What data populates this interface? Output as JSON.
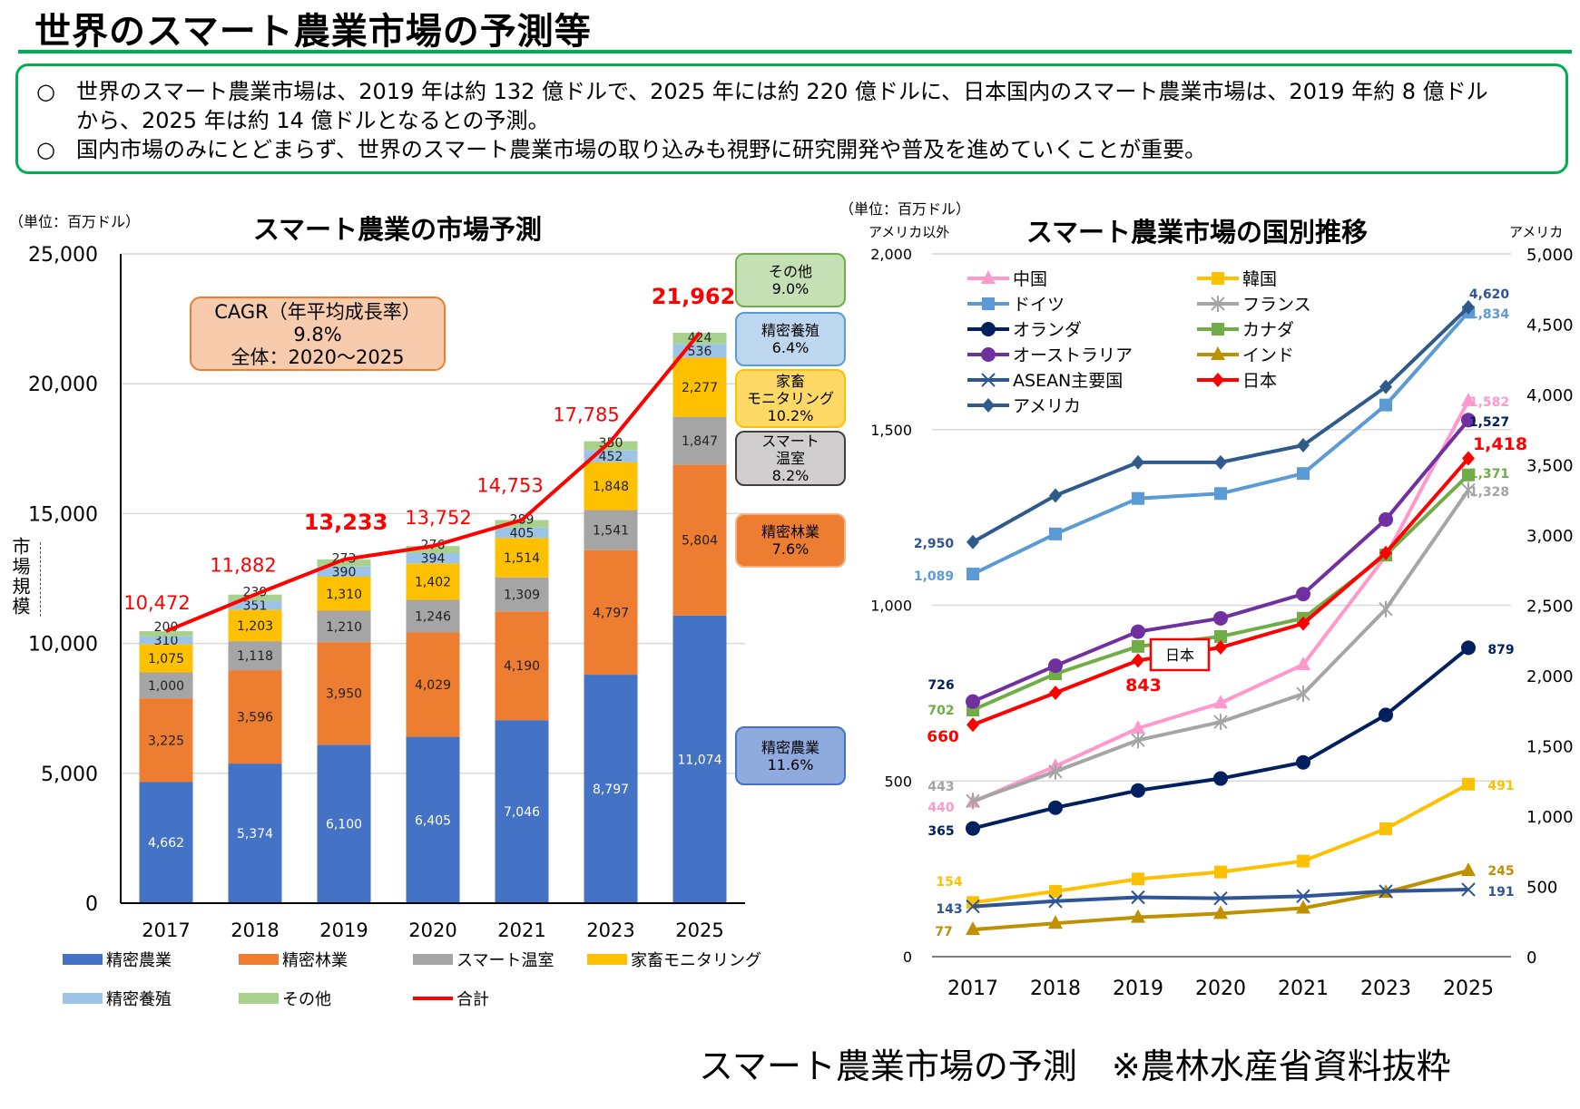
{
  "title": "世界のスマート農業市場の予測等",
  "summary": {
    "bullet": "○",
    "lines": [
      [
        "○",
        "世界のスマート農業市場は、2019 年は約 132 億ドルで、2025 年には約 220 億ドルに、日本国内のスマート農業市場は、2019 年約 8 億ドル"
      ],
      [
        "",
        "から、2025 年は約 14 億ドルとなるとの予測。"
      ],
      [
        "○",
        "国内市場のみにとどまらず、世界のスマート農業市場の取り込みも視野に研究開発や普及を進めていくことが重要。"
      ]
    ]
  },
  "caption": "スマート農業市場の予測　※農林水産省資料抜粋",
  "chart_data": [
    {
      "type": "bar",
      "stacked": true,
      "title": "スマート農業の市場予測",
      "unit": "（単位：百万ドル）",
      "ylabel": "市場規模",
      "ylim": [
        0,
        25000
      ],
      "yticks": [
        "0",
        "5,000",
        "10,000",
        "15,000",
        "20,000",
        "25,000"
      ],
      "grid": true,
      "legend": "bottom",
      "categories": [
        "2017",
        "2018",
        "2019",
        "2020",
        "2021",
        "2023",
        "2025"
      ],
      "series": [
        {
          "name": "精密農業",
          "color": "#4472C4",
          "values": [
            4662,
            5374,
            6100,
            6405,
            7046,
            8797,
            11074
          ],
          "labels": [
            "4,662",
            "5,374",
            "6,100",
            "6,405",
            "7,046",
            "8,797",
            "11,074"
          ]
        },
        {
          "name": "精密林業",
          "color": "#ED7D31",
          "values": [
            3225,
            3596,
            3950,
            4029,
            4190,
            4797,
            5804
          ],
          "labels": [
            "3,225",
            "3,596",
            "3,950",
            "4,029",
            "4,190",
            "4,797",
            "5,804"
          ]
        },
        {
          "name": "スマート温室",
          "color": "#A5A5A5",
          "values": [
            1000,
            1118,
            1210,
            1246,
            1309,
            1541,
            1847
          ],
          "labels": [
            "1,000",
            "1,118",
            "1,210",
            "1,246",
            "1,309",
            "1,541",
            "1,847"
          ]
        },
        {
          "name": "家畜モニタリング",
          "color": "#FFC000",
          "values": [
            1075,
            1203,
            1310,
            1402,
            1514,
            1848,
            2277
          ],
          "labels": [
            "1,075",
            "1,203",
            "1,310",
            "1,402",
            "1,514",
            "1,848",
            "2,277"
          ]
        },
        {
          "name": "精密養殖",
          "color": "#9DC3E6",
          "values": [
            310,
            351,
            390,
            394,
            405,
            452,
            536
          ],
          "labels": [
            "310",
            "351",
            "390",
            "394",
            "405",
            "452",
            "536"
          ]
        },
        {
          "name": "その他",
          "color": "#A9D18E",
          "values": [
            200,
            239,
            273,
            276,
            289,
            350,
            424
          ],
          "labels": [
            "200",
            "239",
            "273",
            "276",
            "289",
            "350",
            "424"
          ]
        }
      ],
      "total": {
        "name": "合計",
        "color": "#FF0000",
        "values": [
          10472,
          11882,
          13233,
          13752,
          14753,
          17785,
          21962
        ],
        "labels": [
          "10,472",
          "11,882",
          "13,233",
          "13,752",
          "14,753",
          "17,785",
          "21,962"
        ]
      },
      "cagr": {
        "line1": "CAGR（年平均成長率）",
        "line2": "9.8%",
        "line3": "全体：2020～2025"
      },
      "growth_boxes": [
        {
          "name": "その他",
          "rate": "9.0%",
          "fill": "#C5E0B4",
          "border": "#70AD47"
        },
        {
          "name": "精密養殖",
          "rate": "6.4%",
          "fill": "#BDD7EE",
          "border": "#5B9BD5"
        },
        {
          "name": "家畜モニタリング",
          "rate": "10.2%",
          "fill": "#FFD966",
          "border": "#FFC000"
        },
        {
          "name": "スマート温室",
          "rate": "8.2%",
          "fill": "#D0CECE",
          "border": "#404040"
        },
        {
          "name": "精密林業",
          "rate": "7.6%",
          "fill": "#ED7D31",
          "border": "#F4B183"
        },
        {
          "name": "精密農業",
          "rate": "11.6%",
          "fill": "#8FAADC",
          "border": "#4472C4"
        }
      ]
    },
    {
      "type": "line",
      "title": "スマート農業市場の国別推移",
      "unit": "（単位：百万ドル）",
      "ylabel_left": "アメリカ以外",
      "ylabel_right": "アメリカ",
      "ylim_left": [
        0,
        2000
      ],
      "yticks_left": [
        "0",
        "500",
        "1,000",
        "1,500",
        "2,000"
      ],
      "ylim_right": [
        0,
        5000
      ],
      "yticks_right": [
        "0",
        "500",
        "1,000",
        "1,500",
        "2,000",
        "2,500",
        "3,000",
        "3,500",
        "4,000",
        "4,500",
        "5,000"
      ],
      "grid": true,
      "legend": "top-left",
      "categories": [
        "2017",
        "2018",
        "2019",
        "2020",
        "2021",
        "2023",
        "2025"
      ],
      "callout": "日本",
      "series": [
        {
          "name": "中国",
          "color": "#FF99CC",
          "marker": "triangle",
          "axis": "left",
          "values": [
            440,
            542,
            650,
            722,
            831,
            1140,
            1582
          ],
          "start_label": "440",
          "end_label": "1,582",
          "label_color": "#FF99CC"
        },
        {
          "name": "韓国",
          "color": "#FFC000",
          "marker": "square",
          "axis": "left",
          "values": [
            154,
            186,
            221,
            241,
            272,
            364,
            491
          ],
          "start_label": "154",
          "end_label": "491",
          "label_color": "#FFC000"
        },
        {
          "name": "ドイツ",
          "color": "#5B9BD5",
          "marker": "square",
          "axis": "left",
          "values": [
            1089,
            1203,
            1304,
            1318,
            1375,
            1570,
            1834
          ],
          "start_label": "1,089",
          "end_label": "1,834",
          "label_color": "#5B9BD5"
        },
        {
          "name": "フランス",
          "color": "#A5A5A5",
          "marker": "asterisk",
          "axis": "left",
          "values": [
            443,
            527,
            616,
            668,
            748,
            989,
            1328
          ],
          "start_label": "443",
          "end_label": "1,328",
          "label_color": "#A5A5A5"
        },
        {
          "name": "オランダ",
          "color": "#002060",
          "marker": "circle",
          "axis": "left",
          "values": [
            365,
            424,
            473,
            507,
            553,
            688,
            879
          ],
          "start_label": "365",
          "end_label": "879",
          "label_color": "#002060"
        },
        {
          "name": "カナダ",
          "color": "#70AD47",
          "marker": "square",
          "axis": "left",
          "values": [
            702,
            805,
            883,
            911,
            963,
            1143,
            1371
          ],
          "start_label": "702",
          "end_label": "1,371",
          "label_color": "#70AD47"
        },
        {
          "name": "オーストラリア",
          "color": "#7030A0",
          "marker": "circle",
          "axis": "left",
          "values": [
            726,
            828,
            925,
            963,
            1032,
            1244,
            1527
          ],
          "start_label": "726",
          "end_label": "1,527",
          "label_color": "#002060"
        },
        {
          "name": "インド",
          "color": "#BF9000",
          "marker": "triangle",
          "axis": "left",
          "values": [
            77,
            95,
            112,
            123,
            138,
            183,
            245
          ],
          "start_label": "77",
          "end_label": "245",
          "label_color": "#BF9000"
        },
        {
          "name": "ASEAN主要国",
          "color": "#2F5597",
          "marker": "x",
          "axis": "left",
          "values": [
            143,
            158,
            169,
            166,
            172,
            186,
            191
          ],
          "start_label": "143",
          "end_label": "191",
          "label_color": "#2F5597"
        },
        {
          "name": "日本",
          "color": "#FF0000",
          "marker": "diamond",
          "axis": "left",
          "values": [
            660,
            751,
            843,
            880,
            948,
            1149,
            1418
          ],
          "start_label": "660",
          "mid_label": "843",
          "end_label": "1,418",
          "label_color": "#FF0000"
        },
        {
          "name": "アメリカ",
          "color": "#2E5A8C",
          "marker": "diamond",
          "axis": "right",
          "values": [
            2950,
            3281,
            3517,
            3517,
            3639,
            4054,
            4620
          ],
          "start_label": "2,950",
          "end_label": "4,620",
          "label_color": "#2F5597"
        }
      ]
    }
  ]
}
